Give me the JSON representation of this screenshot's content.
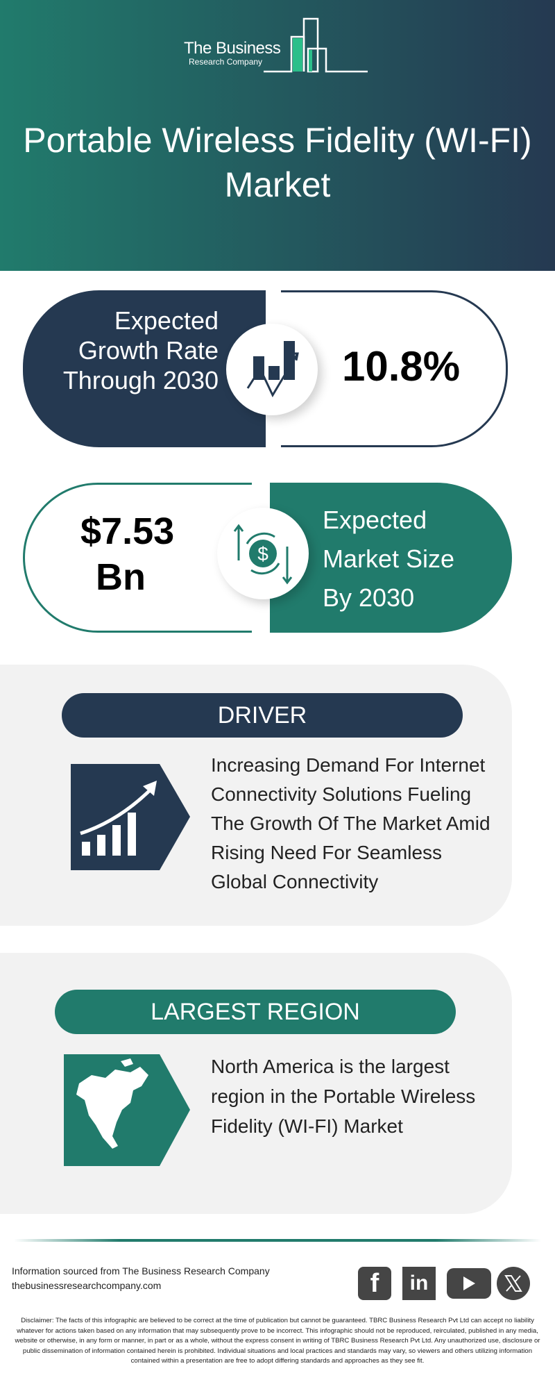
{
  "brand": {
    "line1": "The Business",
    "line2": "Research Company"
  },
  "title": "Portable Wireless Fidelity (WI-FI) Market",
  "growth": {
    "label": "Expected Growth Rate Through 2030",
    "value": "10.8%"
  },
  "market_size": {
    "value_line1": "$7.53",
    "value_line2": "Bn",
    "label": "Expected Market Size By 2030"
  },
  "driver": {
    "heading": "DRIVER",
    "text": "Increasing Demand For Internet Connectivity Solutions Fueling The Growth Of The Market Amid Rising Need For Seamless Global Connectivity"
  },
  "region": {
    "heading": "LARGEST REGION",
    "text": "North America is the largest region in the Portable Wireless Fidelity (WI-FI) Market"
  },
  "footer": {
    "source": "Information sourced from The Business Research Company",
    "website": "thebusinessresearchcompany.com",
    "social": [
      "facebook-icon",
      "linkedin-icon",
      "youtube-icon",
      "x-icon"
    ],
    "fb": "f",
    "li": "in"
  },
  "disclaimer": "Disclaimer: The facts of this infographic are believed to be correct at the time of publication but cannot be guaranteed. TBRC Business Research Pvt Ltd can accept no liability whatever for actions taken based on any information that may subsequently prove to be incorrect. This infographic should not be reproduced, reirculated, published in any media, website or otherwise, in any form or manner, in part or as a whole, without the express consent in writing of TBRC Business Research Pvt Ltd. Any unauthorized use, disclosure or public dissemination of information contained herein is prohibited. Individual situations and local practices and standards may vary, so viewers and others utilizing information contained within a presentation are free to adopt differing standards and approaches as they see fit.",
  "colors": {
    "dark": "#253951",
    "teal": "#217b6c",
    "card": "#f2f2f2"
  }
}
